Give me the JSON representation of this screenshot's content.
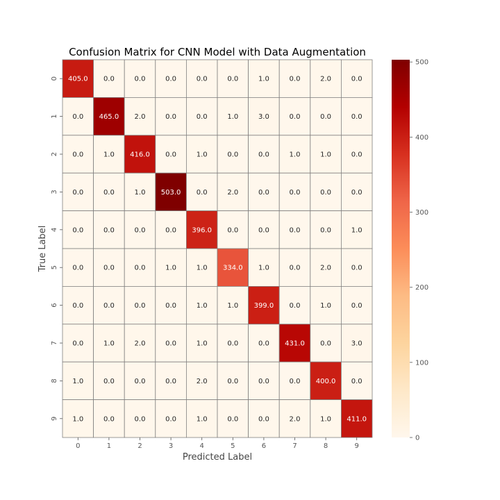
{
  "chart_data": {
    "type": "heatmap",
    "title": "Confusion Matrix for CNN Model with Data Augmentation",
    "xlabel": "Predicted Label",
    "ylabel": "True Label",
    "x_categories": [
      "0",
      "1",
      "2",
      "3",
      "4",
      "5",
      "6",
      "7",
      "8",
      "9"
    ],
    "y_categories": [
      "0",
      "1",
      "2",
      "3",
      "4",
      "5",
      "6",
      "7",
      "8",
      "9"
    ],
    "matrix": [
      [
        405.0,
        0.0,
        0.0,
        0.0,
        0.0,
        0.0,
        1.0,
        0.0,
        2.0,
        0.0
      ],
      [
        0.0,
        465.0,
        2.0,
        0.0,
        0.0,
        1.0,
        3.0,
        0.0,
        0.0,
        0.0
      ],
      [
        0.0,
        1.0,
        416.0,
        0.0,
        1.0,
        0.0,
        0.0,
        1.0,
        1.0,
        0.0
      ],
      [
        0.0,
        0.0,
        1.0,
        503.0,
        0.0,
        2.0,
        0.0,
        0.0,
        0.0,
        0.0
      ],
      [
        0.0,
        0.0,
        0.0,
        0.0,
        396.0,
        0.0,
        0.0,
        0.0,
        0.0,
        1.0
      ],
      [
        0.0,
        0.0,
        0.0,
        1.0,
        1.0,
        334.0,
        1.0,
        0.0,
        2.0,
        0.0
      ],
      [
        0.0,
        0.0,
        0.0,
        0.0,
        1.0,
        1.0,
        399.0,
        0.0,
        1.0,
        0.0
      ],
      [
        0.0,
        1.0,
        2.0,
        0.0,
        1.0,
        0.0,
        0.0,
        431.0,
        0.0,
        3.0
      ],
      [
        1.0,
        0.0,
        0.0,
        0.0,
        2.0,
        0.0,
        0.0,
        0.0,
        400.0,
        0.0
      ],
      [
        1.0,
        0.0,
        0.0,
        0.0,
        1.0,
        0.0,
        0.0,
        2.0,
        1.0,
        411.0
      ]
    ],
    "value_format": "0.0",
    "colormap": "OrRd",
    "color_range": [
      0,
      503
    ],
    "colorbar_ticks": [
      0,
      100,
      200,
      300,
      400,
      500
    ],
    "colorbar_tick_labels": [
      "0",
      "100",
      "200",
      "300",
      "400",
      "500"
    ],
    "cell_border_color": "#808080",
    "annotation_dark_text": "#262626",
    "annotation_light_text": "#ffffff"
  }
}
